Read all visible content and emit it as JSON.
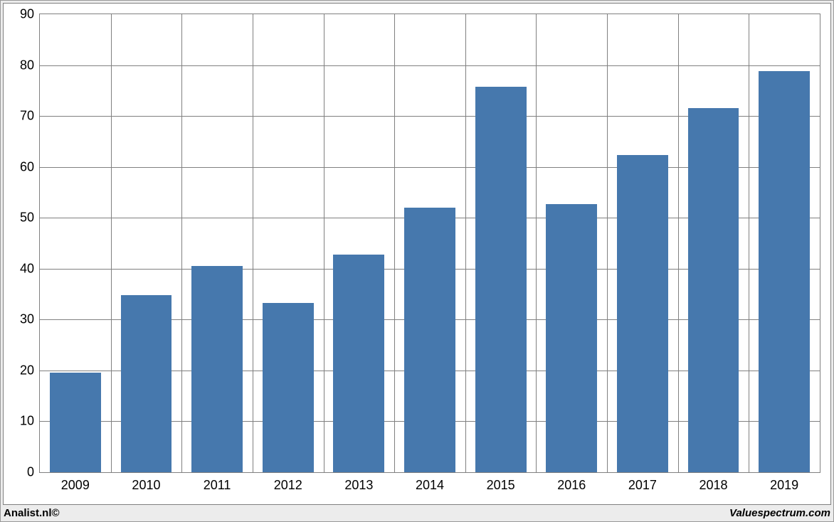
{
  "chart": {
    "type": "bar",
    "categories": [
      "2009",
      "2010",
      "2011",
      "2012",
      "2013",
      "2014",
      "2015",
      "2016",
      "2017",
      "2018",
      "2019"
    ],
    "values": [
      19.5,
      34.8,
      40.5,
      33.2,
      42.7,
      52.0,
      75.8,
      52.7,
      62.3,
      71.6,
      78.8
    ],
    "bar_color": "#4678ad",
    "ylim": [
      0,
      90
    ],
    "ytick_step": 10,
    "yticks": [
      0,
      10,
      20,
      30,
      40,
      50,
      60,
      70,
      80,
      90
    ],
    "background_color": "#ffffff",
    "panel_background": "#ececec",
    "grid_color": "#808080",
    "border_color": "#808080",
    "bar_width_ratio": 0.72,
    "axis_fontsize": 18,
    "axis_font_color": "#000000",
    "footer_fontsize": 15,
    "footer_color": "#000000"
  },
  "footer": {
    "left": "Analist.nl©",
    "right": "Valuespectrum.com"
  }
}
